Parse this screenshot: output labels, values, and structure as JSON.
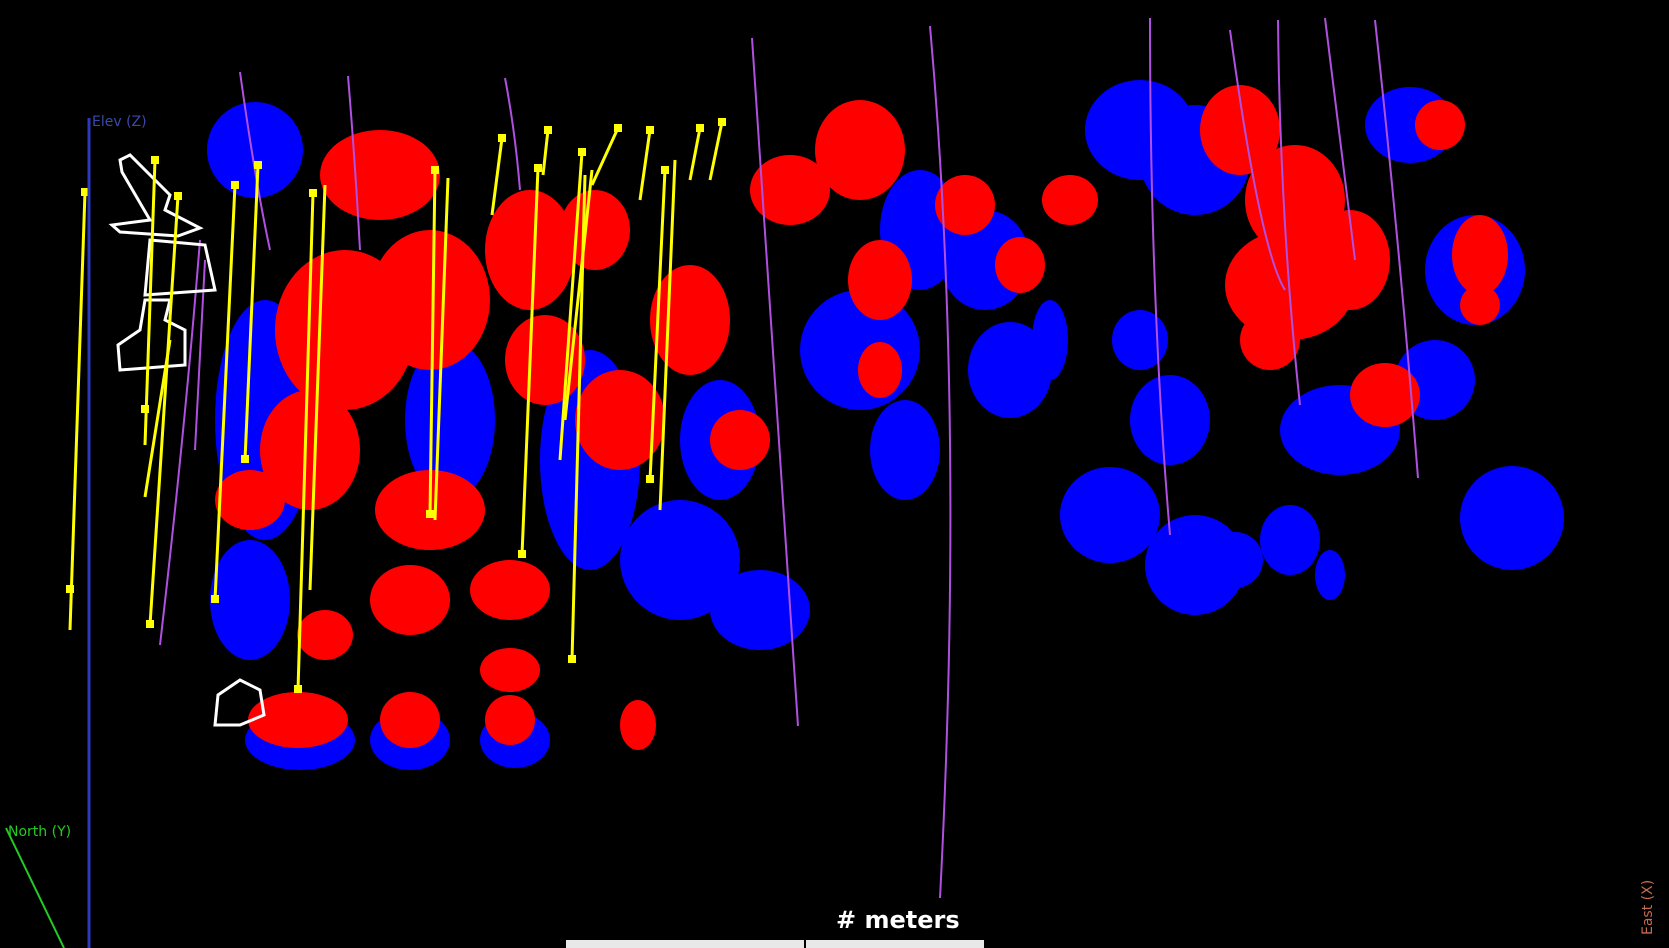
{
  "viewer": {
    "axes": {
      "elev_label": "Elev (Z)",
      "north_label": "North (Y)",
      "east_label": "East (X)"
    },
    "scale_bar": {
      "label": "# meters"
    }
  },
  "colors": {
    "background": "#000000",
    "block_a": "#0000ff",
    "block_b": "#ff0000",
    "drillhole": "#ffff00",
    "trace": "#b050e0",
    "outline": "#ffffff",
    "elev_axis": "#3a4aa8",
    "north_axis": "#22cc22",
    "east_axis": "#c86a50",
    "scale_text": "#ffffff"
  },
  "icons": [
    "orientation-triad-icon"
  ]
}
